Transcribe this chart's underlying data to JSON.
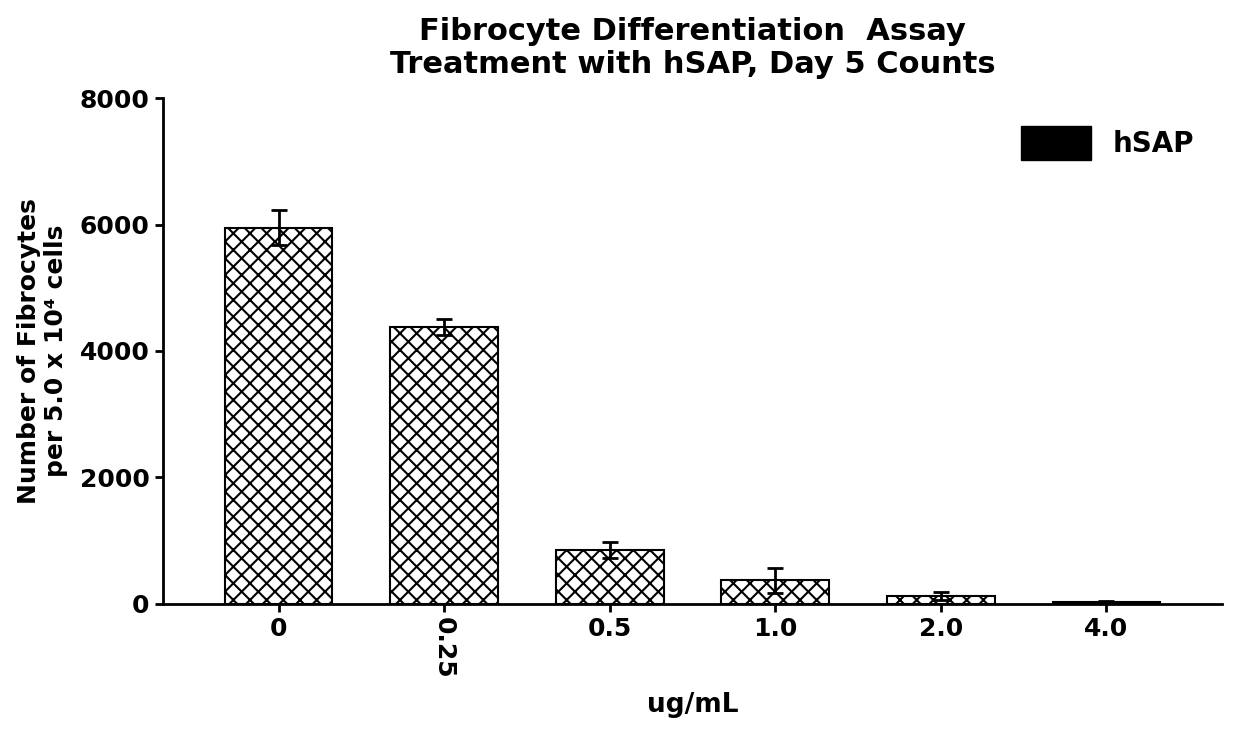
{
  "title_line1": "Fibrocyte Differentiation  Assay",
  "title_line2": "Treatment with hSAP, Day 5 Counts",
  "xlabel": "ug/mL",
  "ylabel": "Number of Fibrocytes\nper 5.0 x 10⁴ cells",
  "categories": [
    "0",
    "0.25",
    "0.5",
    "1.0",
    "2.0",
    "4.0"
  ],
  "values": [
    5950,
    4380,
    850,
    370,
    120,
    20
  ],
  "errors": [
    280,
    120,
    120,
    200,
    60,
    15
  ],
  "ylim": [
    0,
    8000
  ],
  "yticks": [
    0,
    2000,
    4000,
    6000,
    8000
  ],
  "legend_label": "hSAP",
  "background_color": "#ffffff",
  "title_fontsize": 22,
  "axis_fontsize": 19,
  "tick_fontsize": 18,
  "legend_fontsize": 20,
  "bar_width": 0.65
}
